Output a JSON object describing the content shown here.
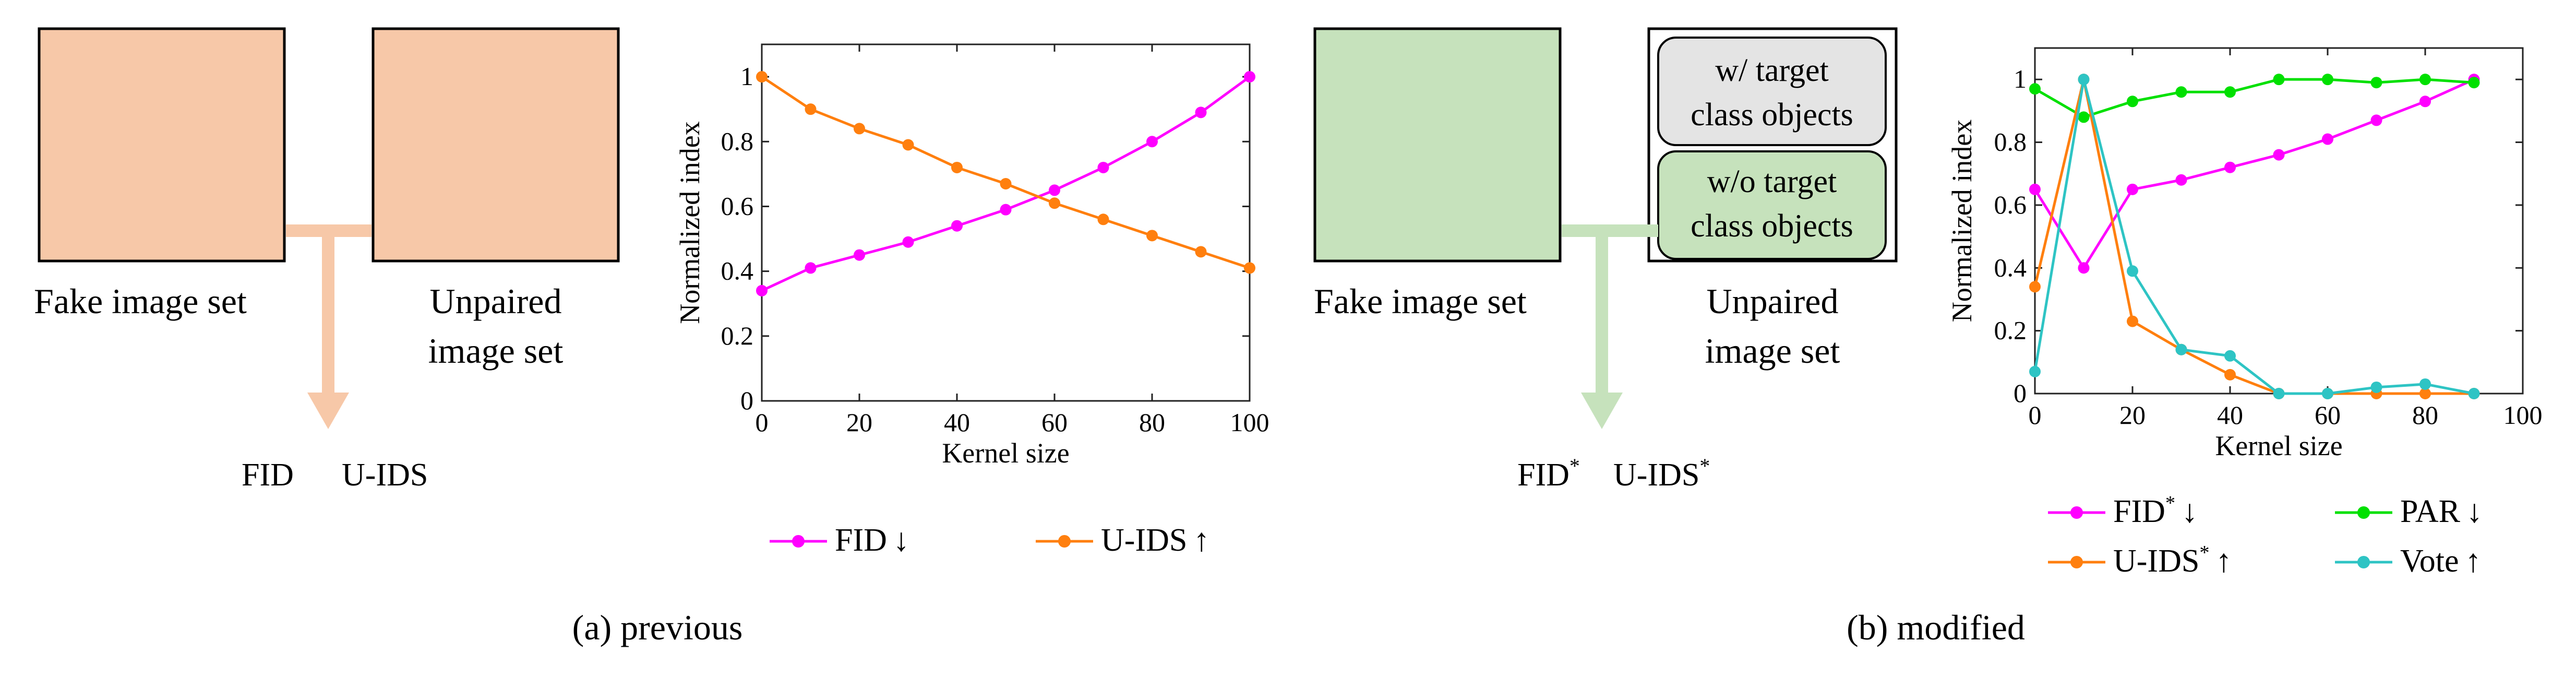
{
  "panel_a": {
    "caption": "(a) previous",
    "fake_label": "Fake image set",
    "unpaired_label_1": "Unpaired",
    "unpaired_label_2": "image set",
    "metric_1": "FID",
    "metric_2": "U-IDS",
    "colors": {
      "box_fill": "#f7c8a8",
      "arrow": "#f7c8a8"
    }
  },
  "panel_b": {
    "caption": "(b) modified",
    "fake_label": "Fake image set",
    "unpaired_label_1": "Unpaired",
    "unpaired_label_2": "image set",
    "with_target_1": "w/ target",
    "with_target_2": "class objects",
    "without_target_1": "w/o target",
    "without_target_2": "class objects",
    "metric_1": "FID",
    "metric_1_sup": "*",
    "metric_2": "U-IDS",
    "metric_2_sup": "*",
    "colors": {
      "box_fill": "#c6e2bc",
      "arrow": "#c6e2bc",
      "with_fill": "#e4e4e4",
      "without_fill": "#c6e2bc"
    }
  },
  "chart_data": [
    {
      "type": "line",
      "xlabel": "Kernel size",
      "ylabel": "Normalized index",
      "xlim": [
        0,
        100
      ],
      "ylim": [
        0,
        1.1
      ],
      "xticks": [
        "0",
        "20",
        "40",
        "60",
        "80",
        "100"
      ],
      "yticks": [
        "0",
        "0.2",
        "0.4",
        "0.6",
        "0.8",
        "1"
      ],
      "x": [
        0,
        10,
        20,
        30,
        40,
        50,
        60,
        70,
        80,
        90,
        100
      ],
      "legend_position": "bottom",
      "series": [
        {
          "name": "FID",
          "arrow": "↓",
          "color": "#ff00ff",
          "values": [
            0.34,
            0.41,
            0.45,
            0.49,
            0.54,
            0.59,
            0.65,
            0.72,
            0.8,
            0.89,
            1.0
          ]
        },
        {
          "name": "U-IDS",
          "arrow": "↑",
          "color": "#ff7f0e",
          "values": [
            1.0,
            0.9,
            0.84,
            0.79,
            0.72,
            0.67,
            0.61,
            0.56,
            0.51,
            0.46,
            0.41
          ]
        }
      ]
    },
    {
      "type": "line",
      "xlabel": "Kernel size",
      "ylabel": "Normalized index",
      "xlim": [
        0,
        100
      ],
      "ylim": [
        0,
        1.1
      ],
      "xticks": [
        "0",
        "20",
        "40",
        "60",
        "80",
        "100"
      ],
      "yticks": [
        "0",
        "0.2",
        "0.4",
        "0.6",
        "0.8",
        "1"
      ],
      "x": [
        0,
        10,
        20,
        30,
        40,
        50,
        60,
        70,
        80,
        90
      ],
      "legend_position": "bottom",
      "series": [
        {
          "name": "FID",
          "sup": "*",
          "arrow": "↓",
          "color": "#ff00ff",
          "values": [
            0.65,
            0.4,
            0.65,
            0.68,
            0.72,
            0.76,
            0.81,
            0.87,
            0.93,
            1.0
          ]
        },
        {
          "name": "PAR",
          "arrow": "↓",
          "color": "#00e000",
          "values": [
            0.97,
            0.88,
            0.93,
            0.96,
            0.96,
            1.0,
            1.0,
            0.99,
            1.0,
            0.99
          ]
        },
        {
          "name": "U-IDS",
          "sup": "*",
          "arrow": "↑",
          "color": "#ff7f0e",
          "values": [
            0.34,
            1.0,
            0.23,
            0.14,
            0.06,
            0.0,
            0.0,
            0.0,
            0.0,
            0.0
          ]
        },
        {
          "name": "Vote",
          "arrow": "↑",
          "color": "#2ec4c4",
          "values": [
            0.07,
            1.0,
            0.39,
            0.14,
            0.12,
            0.0,
            0.0,
            0.02,
            0.03,
            0.0
          ]
        }
      ]
    }
  ]
}
